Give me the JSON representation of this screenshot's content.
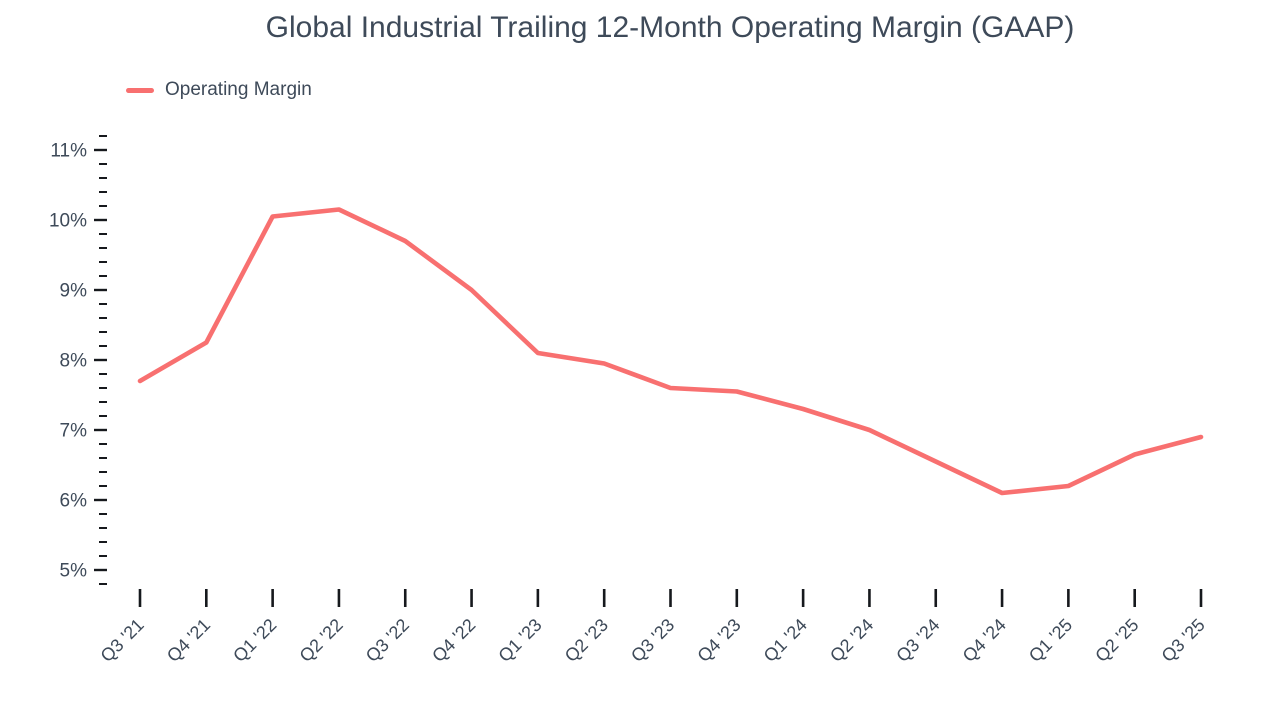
{
  "chart_data": {
    "type": "line",
    "title": "Global Industrial Trailing 12-Month Operating Margin (GAAP)",
    "categories": [
      "Q3 '21",
      "Q4 '21",
      "Q1 '22",
      "Q2 '22",
      "Q3 '22",
      "Q4 '22",
      "Q1 '23",
      "Q2 '23",
      "Q3 '23",
      "Q4 '23",
      "Q1 '24",
      "Q2 '24",
      "Q3 '24",
      "Q4 '24",
      "Q1 '25",
      "Q2 '25",
      "Q3 '25"
    ],
    "series": [
      {
        "name": "Operating Margin",
        "color": "#F87070",
        "values": [
          7.7,
          8.25,
          10.05,
          10.15,
          9.7,
          9.0,
          8.1,
          7.95,
          7.6,
          7.55,
          7.3,
          7.0,
          6.55,
          6.1,
          6.2,
          6.65,
          6.9
        ]
      }
    ],
    "xlabel": "",
    "ylabel": "",
    "y_axis": {
      "min": 4.8,
      "max": 11.2,
      "major_step": 1.0,
      "minor_step": 0.2,
      "unit": "%",
      "major_tick_labels": [
        "5%",
        "6%",
        "7%",
        "8%",
        "9%",
        "10%",
        "11%"
      ]
    },
    "x_axis": {
      "tick_label_rotation_deg": -45
    },
    "grid": false,
    "legend": {
      "position": "top-left",
      "items": [
        {
          "label": "Operating Margin",
          "color": "#F87070"
        }
      ]
    }
  },
  "styles": {
    "background": "#FFFFFF",
    "title_color": "#3E4A59",
    "axis_label_color": "#3E4A59",
    "tick_color": "#16191D",
    "series_color": "#F87070"
  }
}
